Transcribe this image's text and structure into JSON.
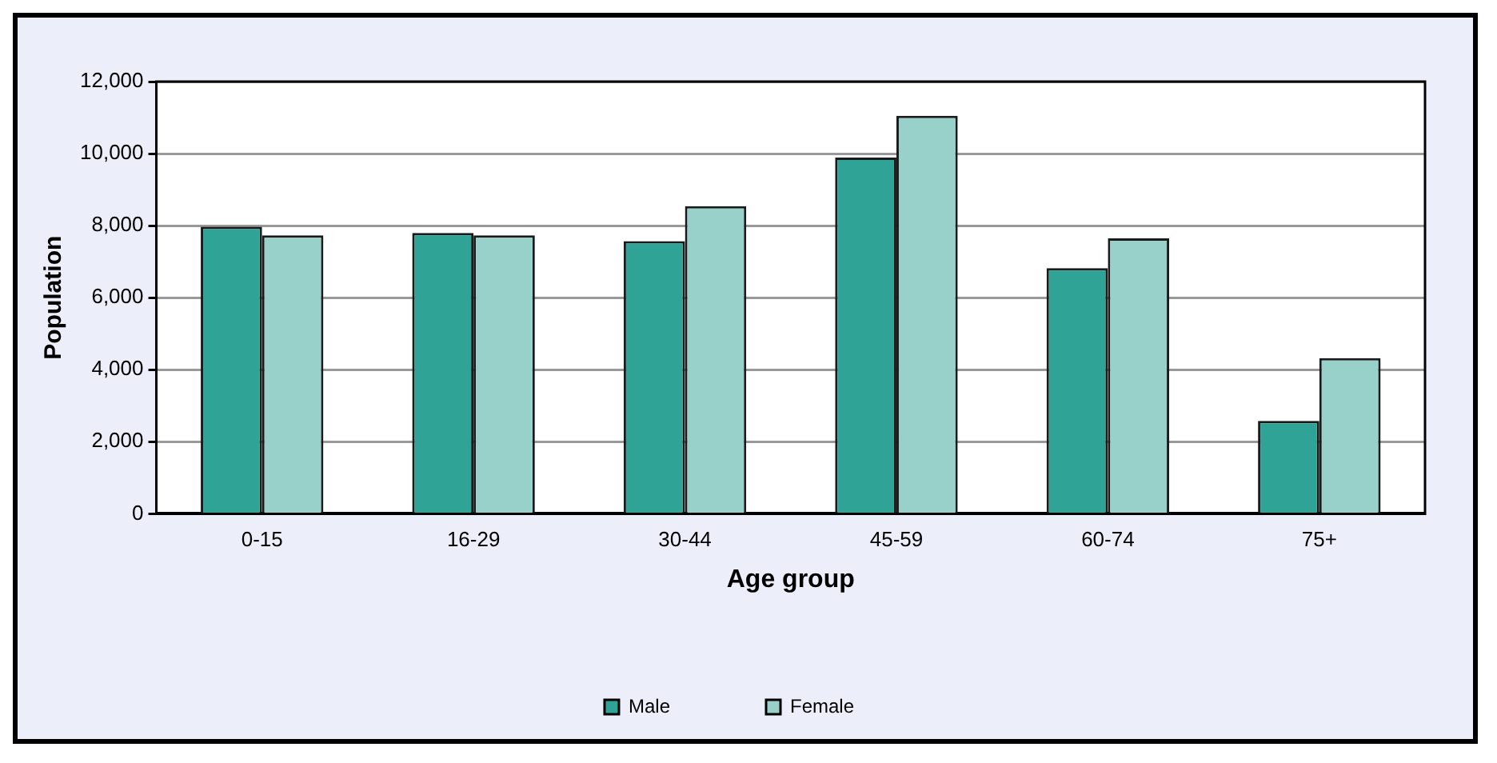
{
  "chart_data": {
    "type": "bar",
    "xlabel": "Age group",
    "ylabel": "Population",
    "categories": [
      "0-15",
      "16-29",
      "30-44",
      "45-59",
      "60-74",
      "75+"
    ],
    "series": [
      {
        "name": "Male",
        "color": "#2ea396",
        "values": [
          7970,
          7800,
          7570,
          9890,
          6820,
          2580
        ]
      },
      {
        "name": "Female",
        "color": "#98d1c9",
        "values": [
          7730,
          7730,
          8540,
          11050,
          7650,
          4320
        ]
      }
    ],
    "ylim": [
      0,
      12000
    ],
    "yticks": [
      {
        "value": 0,
        "label": "0"
      },
      {
        "value": 2000,
        "label": "2,000"
      },
      {
        "value": 4000,
        "label": "4,000"
      },
      {
        "value": 6000,
        "label": "6,000"
      },
      {
        "value": 8000,
        "label": "8,000"
      },
      {
        "value": 10000,
        "label": "10,000"
      },
      {
        "value": 12000,
        "label": "12,000"
      }
    ],
    "grid": "y",
    "legend": "bottom"
  }
}
